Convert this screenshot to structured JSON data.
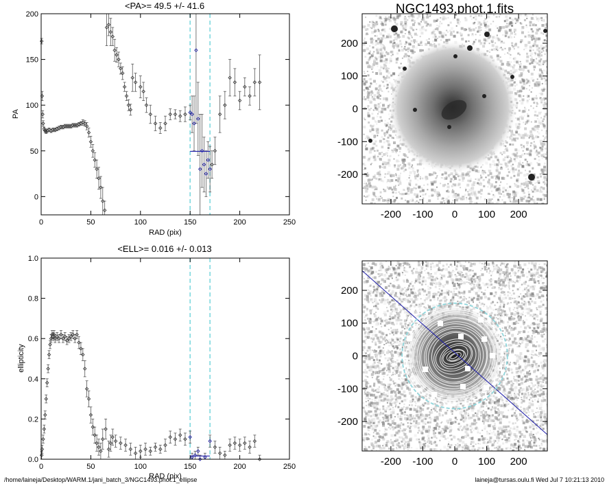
{
  "colors": {
    "axis": "#000000",
    "marker": "#333333",
    "errorbar": "#555555",
    "dash": "#7fd9df",
    "fit": "#1a1aa8",
    "ring": "#8fd6dc"
  },
  "chart_data": [
    {
      "type": "scatter",
      "title": "<PA>=  49.5 +/-  41.6",
      "xlabel": "RAD (pix)",
      "ylabel": "PA",
      "xlim": [
        0,
        250
      ],
      "ylim": [
        -20,
        200
      ],
      "xticks": [
        0,
        50,
        100,
        150,
        200,
        250
      ],
      "yticks": [
        0,
        50,
        100,
        150,
        200
      ],
      "vlines": [
        150,
        170
      ],
      "fit_segment": {
        "x": [
          150,
          170
        ],
        "y": 49.5
      },
      "points": [
        [
          0.5,
          170,
          3
        ],
        [
          1,
          110,
          5
        ],
        [
          1.5,
          90,
          4
        ],
        [
          2,
          80,
          3
        ],
        [
          3,
          74,
          2
        ],
        [
          4,
          72,
          2
        ],
        [
          5,
          71,
          2
        ],
        [
          6,
          72,
          2
        ],
        [
          8,
          73,
          2
        ],
        [
          10,
          72,
          2
        ],
        [
          12,
          73,
          2
        ],
        [
          14,
          73,
          2
        ],
        [
          16,
          74,
          2
        ],
        [
          18,
          75,
          2
        ],
        [
          20,
          76,
          2
        ],
        [
          22,
          76,
          2
        ],
        [
          24,
          77,
          2
        ],
        [
          26,
          77,
          2
        ],
        [
          28,
          77,
          2
        ],
        [
          30,
          77,
          2
        ],
        [
          32,
          78,
          2
        ],
        [
          34,
          78,
          2
        ],
        [
          36,
          78,
          2
        ],
        [
          38,
          79,
          2
        ],
        [
          40,
          80,
          2
        ],
        [
          42,
          81,
          3
        ],
        [
          44,
          80,
          3
        ],
        [
          46,
          77,
          4
        ],
        [
          48,
          70,
          5
        ],
        [
          50,
          60,
          6
        ],
        [
          52,
          50,
          7
        ],
        [
          54,
          40,
          8
        ],
        [
          56,
          30,
          10
        ],
        [
          58,
          20,
          12
        ],
        [
          60,
          10,
          12
        ],
        [
          62,
          -5,
          15
        ],
        [
          64,
          -15,
          10
        ],
        [
          66,
          185,
          20
        ],
        [
          68,
          188,
          12
        ],
        [
          70,
          180,
          15
        ],
        [
          72,
          175,
          10
        ],
        [
          74,
          160,
          12
        ],
        [
          76,
          155,
          8
        ],
        [
          78,
          150,
          8
        ],
        [
          80,
          140,
          6
        ],
        [
          82,
          135,
          7
        ],
        [
          84,
          120,
          5
        ],
        [
          86,
          110,
          5
        ],
        [
          88,
          100,
          6
        ],
        [
          90,
          95,
          6
        ],
        [
          92,
          130,
          15
        ],
        [
          95,
          125,
          10
        ],
        [
          100,
          120,
          12
        ],
        [
          103,
          115,
          10
        ],
        [
          106,
          100,
          8
        ],
        [
          110,
          90,
          10
        ],
        [
          115,
          80,
          8
        ],
        [
          120,
          75,
          6
        ],
        [
          125,
          80,
          8
        ],
        [
          130,
          90,
          6
        ],
        [
          135,
          90,
          5
        ],
        [
          140,
          88,
          6
        ],
        [
          145,
          90,
          8
        ],
        [
          150,
          92,
          8
        ],
        [
          152,
          90,
          20
        ],
        [
          154,
          80,
          30
        ],
        [
          156,
          160,
          80
        ],
        [
          158,
          85,
          40
        ],
        [
          160,
          30,
          60
        ],
        [
          162,
          50,
          40
        ],
        [
          164,
          35,
          30
        ],
        [
          166,
          25,
          25
        ],
        [
          168,
          40,
          20
        ],
        [
          170,
          30,
          25
        ],
        [
          172,
          35,
          15
        ],
        [
          175,
          50,
          15
        ],
        [
          180,
          90,
          20
        ],
        [
          185,
          100,
          15
        ],
        [
          190,
          130,
          20
        ],
        [
          195,
          125,
          15
        ],
        [
          200,
          105,
          10
        ],
        [
          205,
          120,
          10
        ],
        [
          210,
          110,
          10
        ],
        [
          215,
          125,
          15
        ],
        [
          220,
          125,
          30
        ]
      ]
    },
    {
      "type": "scatter",
      "title": "<ELL>= 0.016 +/-  0.013",
      "xlabel": "RAD (pix)",
      "ylabel": "ellipticity",
      "xlim": [
        0,
        250
      ],
      "ylim": [
        0,
        1.0
      ],
      "xticks": [
        0,
        50,
        100,
        150,
        200,
        250
      ],
      "yticks": [
        0.0,
        0.2,
        0.4,
        0.6,
        0.8,
        1.0
      ],
      "vlines": [
        150,
        170
      ],
      "fit_segment": {
        "x": [
          150,
          170
        ],
        "y": 0.016
      },
      "points": [
        [
          0.5,
          0.02,
          0.02
        ],
        [
          1,
          0.05,
          0.02
        ],
        [
          2,
          0.1,
          0.02
        ],
        [
          3,
          0.15,
          0.02
        ],
        [
          4,
          0.22,
          0.02
        ],
        [
          5,
          0.3,
          0.02
        ],
        [
          6,
          0.38,
          0.02
        ],
        [
          7,
          0.45,
          0.02
        ],
        [
          8,
          0.52,
          0.02
        ],
        [
          9,
          0.57,
          0.02
        ],
        [
          10,
          0.6,
          0.02
        ],
        [
          11,
          0.62,
          0.02
        ],
        [
          12,
          0.61,
          0.02
        ],
        [
          13,
          0.62,
          0.02
        ],
        [
          14,
          0.6,
          0.02
        ],
        [
          16,
          0.61,
          0.02
        ],
        [
          18,
          0.6,
          0.02
        ],
        [
          20,
          0.62,
          0.02
        ],
        [
          22,
          0.6,
          0.02
        ],
        [
          24,
          0.61,
          0.02
        ],
        [
          26,
          0.59,
          0.02
        ],
        [
          28,
          0.6,
          0.02
        ],
        [
          30,
          0.61,
          0.02
        ],
        [
          32,
          0.62,
          0.02
        ],
        [
          34,
          0.6,
          0.02
        ],
        [
          36,
          0.62,
          0.02
        ],
        [
          38,
          0.58,
          0.03
        ],
        [
          40,
          0.55,
          0.03
        ],
        [
          42,
          0.52,
          0.03
        ],
        [
          44,
          0.45,
          0.04
        ],
        [
          46,
          0.35,
          0.04
        ],
        [
          48,
          0.3,
          0.04
        ],
        [
          50,
          0.22,
          0.04
        ],
        [
          52,
          0.16,
          0.04
        ],
        [
          54,
          0.12,
          0.04
        ],
        [
          56,
          0.08,
          0.04
        ],
        [
          58,
          0.06,
          0.04
        ],
        [
          60,
          0.04,
          0.04
        ],
        [
          62,
          0.1,
          0.05
        ],
        [
          65,
          0.15,
          0.05
        ],
        [
          68,
          0.05,
          0.04
        ],
        [
          70,
          0.08,
          0.04
        ],
        [
          72,
          0.11,
          0.04
        ],
        [
          75,
          0.09,
          0.03
        ],
        [
          80,
          0.08,
          0.03
        ],
        [
          85,
          0.07,
          0.03
        ],
        [
          90,
          0.05,
          0.03
        ],
        [
          95,
          0.03,
          0.03
        ],
        [
          100,
          0.04,
          0.03
        ],
        [
          105,
          0.05,
          0.03
        ],
        [
          110,
          0.04,
          0.02
        ],
        [
          115,
          0.06,
          0.02
        ],
        [
          120,
          0.05,
          0.02
        ],
        [
          125,
          0.07,
          0.03
        ],
        [
          130,
          0.11,
          0.03
        ],
        [
          135,
          0.1,
          0.03
        ],
        [
          140,
          0.12,
          0.03
        ],
        [
          145,
          0.1,
          0.03
        ],
        [
          150,
          0.11,
          0.03
        ],
        [
          152,
          0.01,
          0.02
        ],
        [
          155,
          0.02,
          0.02
        ],
        [
          158,
          0.04,
          0.02
        ],
        [
          160,
          0.0,
          0.02
        ],
        [
          165,
          0.01,
          0.02
        ],
        [
          170,
          0.09,
          0.03
        ],
        [
          175,
          0.06,
          0.03
        ],
        [
          180,
          0.03,
          0.03
        ],
        [
          185,
          0.02,
          0.02
        ],
        [
          190,
          0.07,
          0.03
        ],
        [
          195,
          0.08,
          0.03
        ],
        [
          200,
          0.07,
          0.03
        ],
        [
          205,
          0.08,
          0.03
        ],
        [
          210,
          0.06,
          0.03
        ],
        [
          215,
          0.09,
          0.03
        ],
        [
          220,
          0.0,
          0.02
        ]
      ]
    },
    {
      "type": "heatmap",
      "title": "NGC1493.phot.1.fits",
      "xlim": [
        -290,
        290
      ],
      "ylim": [
        -290,
        290
      ],
      "xticks": [
        -200,
        -100,
        0,
        100,
        200
      ],
      "yticks": [
        -200,
        -100,
        0,
        100,
        200
      ]
    },
    {
      "type": "heatmap",
      "title": "",
      "xlim": [
        -290,
        290
      ],
      "ylim": [
        -290,
        290
      ],
      "xticks": [
        -200,
        -100,
        0,
        100,
        200
      ],
      "yticks": [
        -200,
        -100,
        0,
        100,
        200
      ],
      "ring_radius": 165,
      "fit_line": {
        "x": [
          -290,
          290
        ],
        "y": [
          260,
          -240
        ]
      }
    }
  ],
  "footer": {
    "left": "/home/laineja/Desktop/WARM.1/jani_batch_3/NGC1493.phot.1_ellipse",
    "right": "laineja@tursas.oulu.fi  Wed Jul  7 10:21:13 2010"
  }
}
